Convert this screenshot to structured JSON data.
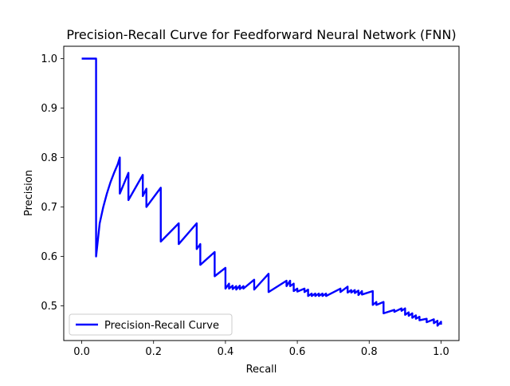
{
  "chart_data": {
    "type": "line",
    "title": "Precision-Recall Curve for Feedforward Neural Network (FNN)",
    "xlabel": "Recall",
    "ylabel": "Precision",
    "xlim": [
      -0.05,
      1.05
    ],
    "ylim": [
      0.43,
      1.025
    ],
    "x_ticks": [
      0.0,
      0.2,
      0.4,
      0.6,
      0.8,
      1.0
    ],
    "x_tick_labels": [
      "0.0",
      "0.2",
      "0.4",
      "0.6",
      "0.8",
      "1.0"
    ],
    "y_ticks": [
      0.5,
      0.6,
      0.7,
      0.8,
      0.9,
      1.0
    ],
    "y_tick_labels": [
      "0.5",
      "0.6",
      "0.7",
      "0.8",
      "0.9",
      "1.0"
    ],
    "grid": false,
    "legend_position": "lower-left",
    "series": [
      {
        "name": "Precision-Recall Curve",
        "color": "#0000ff",
        "x": [
          0.0,
          0.04,
          0.04,
          0.05,
          0.06,
          0.07,
          0.08,
          0.09,
          0.1,
          0.106,
          0.106,
          0.13,
          0.13,
          0.17,
          0.17,
          0.18,
          0.18,
          0.22,
          0.22,
          0.27,
          0.27,
          0.32,
          0.32,
          0.33,
          0.33,
          0.37,
          0.37,
          0.4,
          0.4,
          0.41,
          0.41,
          0.42,
          0.42,
          0.43,
          0.43,
          0.44,
          0.44,
          0.45,
          0.45,
          0.48,
          0.48,
          0.52,
          0.52,
          0.57,
          0.57,
          0.58,
          0.58,
          0.59,
          0.59,
          0.6,
          0.6,
          0.62,
          0.62,
          0.63,
          0.63,
          0.64,
          0.64,
          0.65,
          0.65,
          0.66,
          0.66,
          0.67,
          0.67,
          0.68,
          0.68,
          0.72,
          0.72,
          0.74,
          0.74,
          0.75,
          0.75,
          0.76,
          0.76,
          0.77,
          0.77,
          0.78,
          0.78,
          0.81,
          0.81,
          0.82,
          0.82,
          0.84,
          0.84,
          0.87,
          0.87,
          0.89,
          0.89,
          0.9,
          0.9,
          0.91,
          0.91,
          0.92,
          0.92,
          0.93,
          0.93,
          0.94,
          0.94,
          0.96,
          0.96,
          0.98,
          0.98,
          0.99,
          0.99,
          1.0,
          1.0
        ],
        "y": [
          1.0,
          1.0,
          0.6,
          0.667,
          0.7,
          0.727,
          0.75,
          0.769,
          0.786,
          0.8,
          0.727,
          0.769,
          0.714,
          0.765,
          0.722,
          0.737,
          0.7,
          0.739,
          0.63,
          0.667,
          0.625,
          0.667,
          0.615,
          0.625,
          0.583,
          0.609,
          0.56,
          0.577,
          0.535,
          0.545,
          0.535,
          0.541,
          0.534,
          0.54,
          0.533,
          0.541,
          0.534,
          0.54,
          0.535,
          0.553,
          0.533,
          0.565,
          0.528,
          0.551,
          0.54,
          0.551,
          0.54,
          0.545,
          0.53,
          0.535,
          0.529,
          0.535,
          0.528,
          0.533,
          0.52,
          0.525,
          0.52,
          0.525,
          0.52,
          0.525,
          0.52,
          0.525,
          0.52,
          0.525,
          0.52,
          0.535,
          0.528,
          0.539,
          0.527,
          0.532,
          0.527,
          0.532,
          0.526,
          0.531,
          0.522,
          0.53,
          0.523,
          0.53,
          0.502,
          0.508,
          0.502,
          0.508,
          0.485,
          0.492,
          0.488,
          0.495,
          0.49,
          0.495,
          0.482,
          0.487,
          0.48,
          0.485,
          0.476,
          0.481,
          0.474,
          0.478,
          0.471,
          0.474,
          0.467,
          0.473,
          0.465,
          0.47,
          0.46,
          0.468,
          0.462
        ]
      }
    ]
  }
}
